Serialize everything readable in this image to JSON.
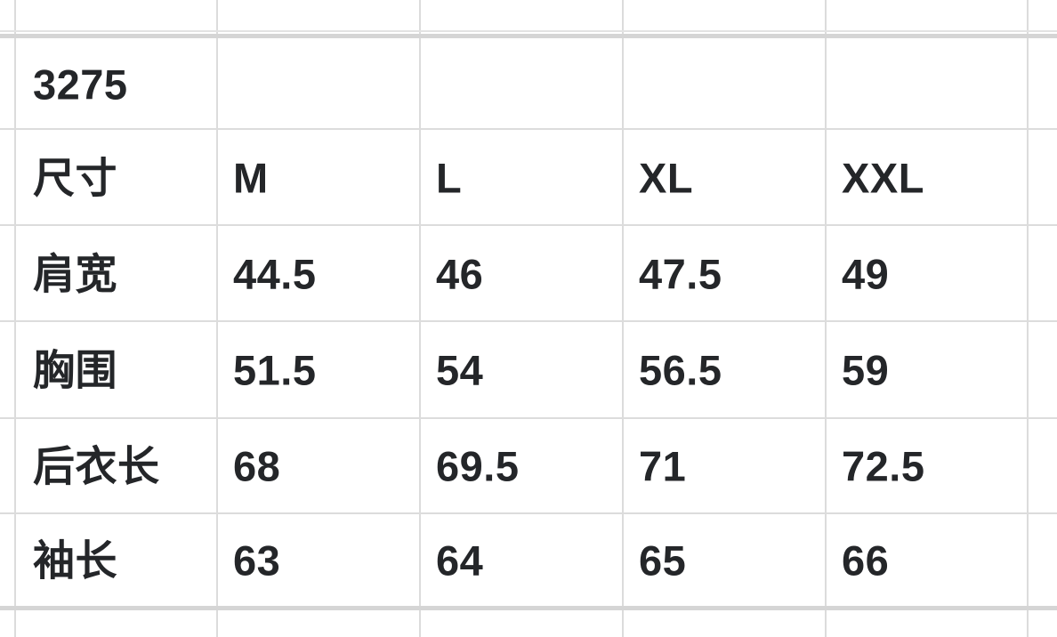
{
  "table": {
    "product_code": "3275",
    "size_row": {
      "label": "尺寸",
      "sizes": [
        "M",
        "L",
        "XL",
        "XXL"
      ]
    },
    "rows": [
      {
        "label": "肩宽",
        "values": [
          "44.5",
          "46",
          "47.5",
          "49"
        ]
      },
      {
        "label": "胸围",
        "values": [
          "51.5",
          "54",
          "56.5",
          "59"
        ]
      },
      {
        "label": "后衣长",
        "values": [
          "68",
          "69.5",
          "71",
          "72.5"
        ]
      },
      {
        "label": "袖长",
        "values": [
          "63",
          "64",
          "65",
          "66"
        ]
      }
    ],
    "colors": {
      "background": "#ffffff",
      "grid_line": "#dcdcdc",
      "grid_line_thick": "#d5d5d5",
      "text": "#242629"
    }
  }
}
